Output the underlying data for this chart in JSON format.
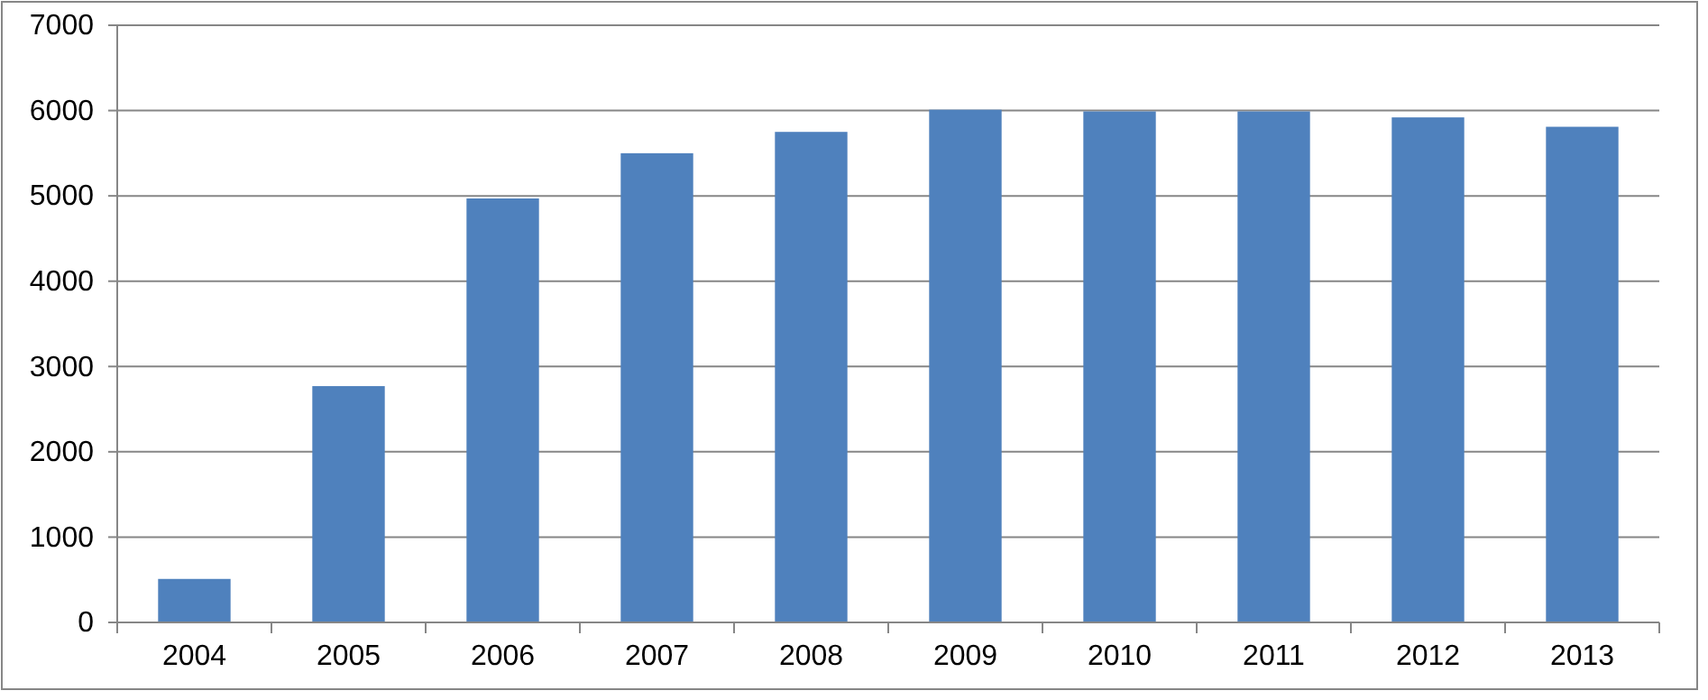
{
  "chart_data": {
    "type": "bar",
    "categories": [
      "2004",
      "2005",
      "2006",
      "2007",
      "2008",
      "2009",
      "2010",
      "2011",
      "2012",
      "2013"
    ],
    "values": [
      510,
      2770,
      4970,
      5500,
      5750,
      6010,
      5990,
      5990,
      5920,
      5810
    ],
    "color": "#4f81bd",
    "ylim": [
      0,
      7000
    ],
    "yticks": [
      0,
      1000,
      2000,
      3000,
      4000,
      5000,
      6000,
      7000
    ],
    "grid": "y"
  }
}
